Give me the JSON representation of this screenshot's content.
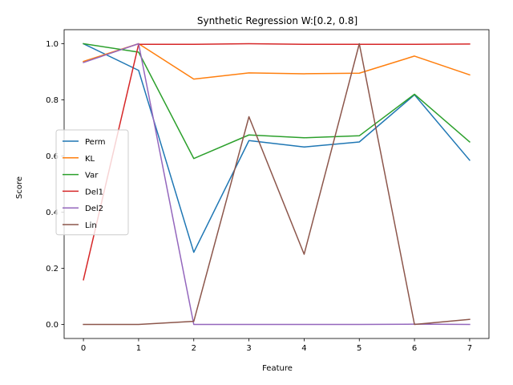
{
  "chart_data": {
    "type": "line",
    "title": "Synthetic Regression W:[0.2, 0.8]",
    "xlabel": "Feature",
    "ylabel": "Score",
    "x": [
      0,
      1,
      2,
      3,
      4,
      5,
      6,
      7
    ],
    "xticks": [
      "0",
      "1",
      "2",
      "3",
      "4",
      "5",
      "6",
      "7"
    ],
    "yticks": [
      "0.0",
      "0.2",
      "0.4",
      "0.6",
      "0.8",
      "1.0"
    ],
    "xlim": [
      -0.35,
      7.35
    ],
    "ylim": [
      -0.05,
      1.05
    ],
    "grid": false,
    "legend_position": "center-left",
    "series": [
      {
        "name": "Perm",
        "color": "#1f77b4",
        "values": [
          1.0,
          0.905,
          0.257,
          0.655,
          0.632,
          0.65,
          0.818,
          0.585
        ]
      },
      {
        "name": "KL",
        "color": "#ff7f0e",
        "values": [
          0.937,
          1.0,
          0.874,
          0.896,
          0.893,
          0.895,
          0.956,
          0.889
        ]
      },
      {
        "name": "Var",
        "color": "#2ca02c",
        "values": [
          1.0,
          0.97,
          0.591,
          0.675,
          0.665,
          0.672,
          0.82,
          0.65
        ]
      },
      {
        "name": "Del1",
        "color": "#d62728",
        "values": [
          0.159,
          0.998,
          0.998,
          1.0,
          0.998,
          0.998,
          0.998,
          0.999
        ]
      },
      {
        "name": "Del2",
        "color": "#9467bd",
        "values": [
          0.933,
          1.0,
          0.0,
          0.0,
          0.0,
          0.0,
          0.001,
          0.0
        ]
      },
      {
        "name": "Lin",
        "color": "#8c564b",
        "values": [
          0.0,
          0.0,
          0.011,
          0.74,
          0.25,
          1.0,
          0.0,
          0.018
        ]
      }
    ]
  }
}
